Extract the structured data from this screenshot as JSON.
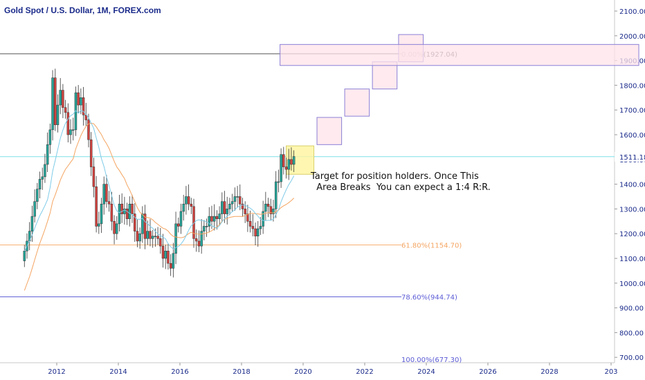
{
  "title": "Gold Spot / U.S. Dollar, 1M, FOREX.com",
  "note": "Target for position holders. Once This\n  Area Breaks  You can expect a 1:4 R:R.",
  "colors": {
    "up": "#26a69a",
    "down": "#d3433f",
    "ma_fast": "#7ecbe8",
    "ma_slow": "#f4a460",
    "fib_0": "#555555",
    "fib_618": "#f4a460",
    "fib_786": "#5b5bd6",
    "current_line": "#7ee0e8",
    "target_box": "#fff59d",
    "projection_fill": "#fde3ea",
    "projection_stroke": "#8a7fd6",
    "axis_text": "#1a2a8a"
  },
  "chart_data": {
    "type": "candlestick",
    "title": "Gold Spot / U.S. Dollar, 1M, FOREX.com",
    "xlabel": "",
    "ylabel": "",
    "x_ticks": [
      "2012",
      "2014",
      "2016",
      "2018",
      "2020",
      "2022",
      "2024",
      "2026",
      "2028",
      "203"
    ],
    "y_ticks": [
      "2100.00",
      "2000.00",
      "1900.00",
      "1800.00",
      "1700.00",
      "1600.00",
      "1500.00",
      "1400.00",
      "1300.00",
      "1200.00",
      "1100.00",
      "1000.00",
      "900.00",
      "800.00",
      "700.00"
    ],
    "ylim": [
      680,
      2150
    ],
    "current_price": "1511.18",
    "fib_levels": [
      {
        "label": "0.00%(1927.04)",
        "price": 1927.04
      },
      {
        "label": "61.80%(1154.70)",
        "price": 1154.7
      },
      {
        "label": "78.60%(944.74)",
        "price": 944.74
      },
      {
        "label": "100.00%(677.30)",
        "price": 677.3
      }
    ],
    "series_close": [
      1130,
      1170,
      1210,
      1270,
      1330,
      1380,
      1420,
      1430,
      1480,
      1560,
      1620,
      1830,
      1640,
      1720,
      1780,
      1710,
      1690,
      1600,
      1620,
      1620,
      1770,
      1720,
      1750,
      1680,
      1660,
      1580,
      1470,
      1390,
      1230,
      1240,
      1320,
      1400,
      1330,
      1320,
      1250,
      1200,
      1240,
      1320,
      1280,
      1300,
      1260,
      1320,
      1280,
      1210,
      1170,
      1200,
      1280,
      1180,
      1210,
      1180,
      1190,
      1190,
      1180,
      1150,
      1100,
      1130,
      1080,
      1060,
      1120,
      1240,
      1230,
      1290,
      1320,
      1350,
      1320,
      1310,
      1180,
      1170,
      1150,
      1210,
      1230,
      1230,
      1270,
      1250,
      1270,
      1260,
      1280,
      1330,
      1280,
      1300,
      1320,
      1330,
      1350,
      1350,
      1320,
      1300,
      1280,
      1250,
      1230,
      1220,
      1190,
      1220,
      1230,
      1290,
      1320,
      1310,
      1280,
      1300,
      1410,
      1410,
      1520,
      1470,
      1460,
      1500,
      1480,
      1512
    ]
  },
  "projection_boxes": [
    {
      "t0": 2019.45,
      "t1": 2020.35,
      "p_low": 1440,
      "p_high": 1555,
      "kind": "target"
    },
    {
      "t0": 2020.45,
      "t1": 2021.25,
      "p_low": 1560,
      "p_high": 1670,
      "kind": "proj"
    },
    {
      "t0": 2021.35,
      "t1": 2022.15,
      "p_low": 1675,
      "p_high": 1785,
      "kind": "proj"
    },
    {
      "t0": 2022.25,
      "t1": 2023.05,
      "p_low": 1785,
      "p_high": 1895,
      "kind": "proj"
    },
    {
      "t0": 2023.1,
      "t1": 2023.9,
      "p_low": 1895,
      "p_high": 2005,
      "kind": "proj"
    },
    {
      "t0": 2019.25,
      "t1": 2030.9,
      "p_low": 1880,
      "p_high": 1965,
      "kind": "proj"
    }
  ]
}
